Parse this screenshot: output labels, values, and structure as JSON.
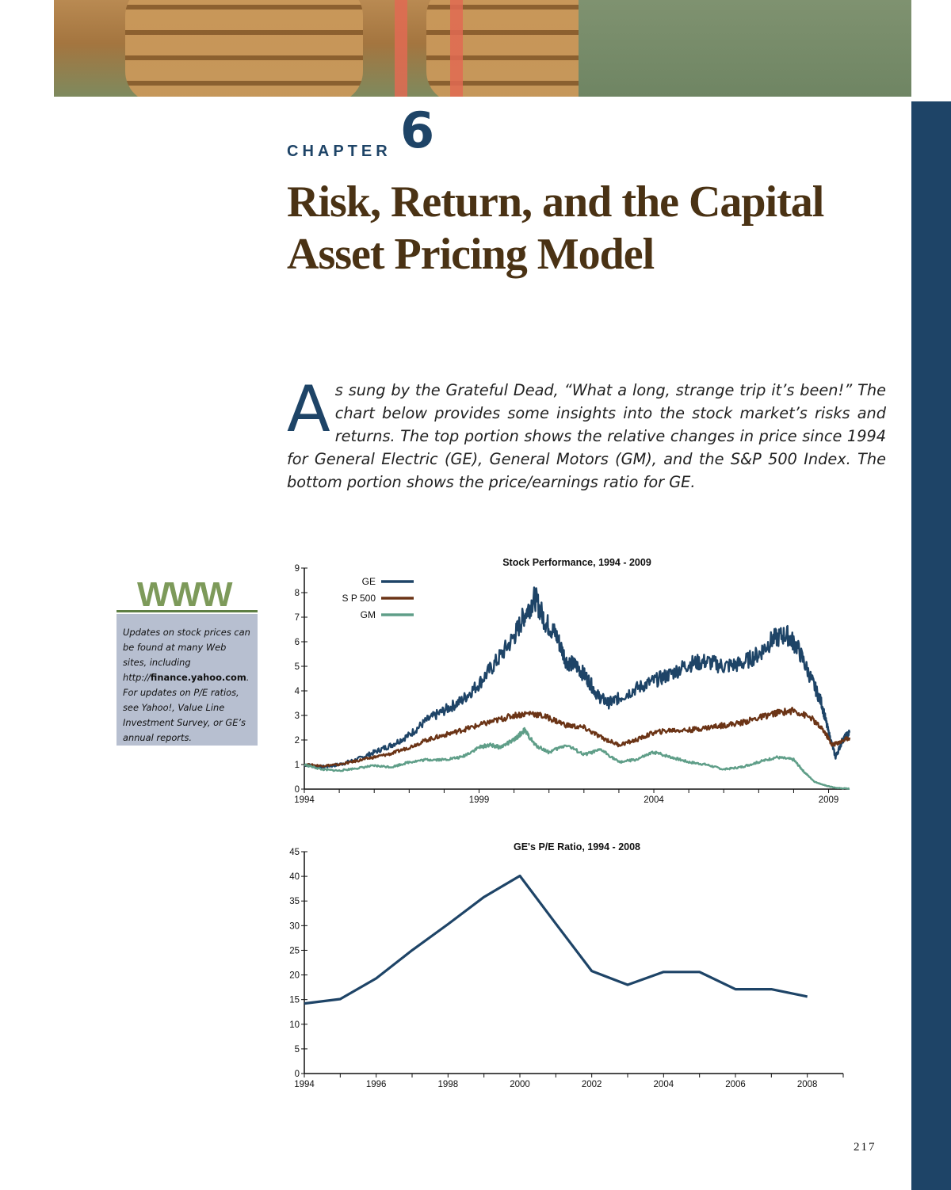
{
  "chapter": {
    "label": "CHAPTER",
    "number": "6",
    "title": "Risk, Return, and the Capital Asset Pricing Model"
  },
  "intro": {
    "drop_cap": "A",
    "text": "s sung by the Grateful Dead, “What a long, strange trip it’s been!” The chart below provides some insights into the stock market’s risks and returns. The top portion shows the relative changes in price since 1994 for General Electric (GE), General Motors (GM), and the S&P 500 Index. The bottom portion shows the price/earnings ratio for GE."
  },
  "sidebar": {
    "www_label": "WWW",
    "note_part1": "Updates on stock prices can be found at many Web sites, including http://",
    "note_bold": "finance.yahoo.com",
    "note_part2": ". For updates on P/E ratios, see Yahoo!, Value Line Investment Survey, or GE’s annual reports."
  },
  "page_number": "217",
  "colors": {
    "ge": "#1e4467",
    "sp500": "#6b3416",
    "gm": "#5f9e88",
    "title": "#4a3214",
    "accent": "#1e4467"
  },
  "chart_data": [
    {
      "type": "line",
      "title": "Stock Performance, 1994 - 2009",
      "xlabel": "",
      "ylabel": "",
      "xlim": [
        1994,
        2009.6
      ],
      "ylim": [
        0,
        9
      ],
      "x_ticks": [
        "1994",
        "1999",
        "2004",
        "2009"
      ],
      "y_ticks": [
        "0",
        "1",
        "2",
        "3",
        "4",
        "5",
        "6",
        "7",
        "8",
        "9"
      ],
      "legend_position": "top-left",
      "series": [
        {
          "name": "GE",
          "x": [
            1994,
            1994.5,
            1995,
            1995.5,
            1996,
            1996.5,
            1997,
            1997.5,
            1998,
            1998.5,
            1999,
            1999.5,
            2000,
            2000.3,
            2000.6,
            2000.9,
            2001.2,
            2001.5,
            2001.8,
            2002.1,
            2002.4,
            2002.7,
            2003,
            2003.5,
            2004,
            2004.5,
            2005,
            2005.5,
            2006,
            2006.5,
            2007,
            2007.4,
            2007.8,
            2008.1,
            2008.5,
            2008.8,
            2009.0,
            2009.2,
            2009.4,
            2009.6
          ],
          "y": [
            1.0,
            0.9,
            1.0,
            1.2,
            1.5,
            1.8,
            2.2,
            2.8,
            3.2,
            3.6,
            4.3,
            5.2,
            6.2,
            7.1,
            7.8,
            6.8,
            6.3,
            5.2,
            5.0,
            4.5,
            3.8,
            3.5,
            3.7,
            4.1,
            4.4,
            4.7,
            5.1,
            5.2,
            5.0,
            5.1,
            5.5,
            6.1,
            6.3,
            5.8,
            4.5,
            3.5,
            2.3,
            1.3,
            2.0,
            2.3
          ]
        },
        {
          "name": "S P 500",
          "x": [
            1994,
            1994.5,
            1995,
            1995.5,
            1996,
            1996.5,
            1997,
            1997.5,
            1998,
            1998.5,
            1999,
            1999.5,
            2000,
            2000.5,
            2001,
            2001.5,
            2002,
            2002.5,
            2003,
            2003.5,
            2004,
            2004.5,
            2005,
            2005.5,
            2006,
            2006.5,
            2007,
            2007.5,
            2008,
            2008.5,
            2008.9,
            2009.1,
            2009.3,
            2009.6
          ],
          "y": [
            1.0,
            0.95,
            1.0,
            1.15,
            1.3,
            1.45,
            1.7,
            2.0,
            2.2,
            2.4,
            2.6,
            2.8,
            3.0,
            3.1,
            2.9,
            2.6,
            2.5,
            2.1,
            1.8,
            2.0,
            2.3,
            2.4,
            2.4,
            2.5,
            2.6,
            2.7,
            2.9,
            3.1,
            3.2,
            2.9,
            2.3,
            1.8,
            1.9,
            2.1
          ]
        },
        {
          "name": "GM",
          "x": [
            1994,
            1994.5,
            1995,
            1995.5,
            1996,
            1996.5,
            1997,
            1997.5,
            1998,
            1998.5,
            1999,
            1999.3,
            1999.6,
            2000,
            2000.3,
            2000.6,
            2001,
            2001.5,
            2002,
            2002.5,
            2003,
            2003.5,
            2004,
            2004.5,
            2005,
            2005.5,
            2006,
            2006.5,
            2007,
            2007.5,
            2008,
            2008.3,
            2008.6,
            2008.9,
            2009.2,
            2009.6
          ],
          "y": [
            1.0,
            0.8,
            0.75,
            0.85,
            0.95,
            0.9,
            1.1,
            1.2,
            1.2,
            1.3,
            1.7,
            1.8,
            1.7,
            2.0,
            2.4,
            1.8,
            1.5,
            1.8,
            1.4,
            1.6,
            1.1,
            1.2,
            1.5,
            1.3,
            1.1,
            1.0,
            0.8,
            0.9,
            1.1,
            1.3,
            1.2,
            0.7,
            0.3,
            0.15,
            0.05,
            0.02
          ]
        }
      ]
    },
    {
      "type": "line",
      "title": "GE's P/E Ratio, 1994 - 2008",
      "xlabel": "",
      "ylabel": "",
      "xlim": [
        1994,
        2009
      ],
      "ylim": [
        0,
        45
      ],
      "x_ticks": [
        "1994",
        "1996",
        "1998",
        "2000",
        "2002",
        "2004",
        "2006",
        "2008"
      ],
      "y_ticks": [
        "0",
        "5",
        "10",
        "15",
        "20",
        "25",
        "30",
        "35",
        "40",
        "45"
      ],
      "series": [
        {
          "name": "GE P/E",
          "x": [
            1994,
            1995,
            1996,
            1997,
            1998,
            1999,
            2000,
            2001,
            2002,
            2003,
            2004,
            2005,
            2006,
            2007,
            2008
          ],
          "y": [
            14.2,
            15.1,
            19.3,
            25.0,
            30.3,
            35.8,
            40.1,
            30.4,
            20.8,
            18.0,
            20.6,
            20.6,
            17.1,
            17.1,
            15.6
          ]
        }
      ]
    }
  ]
}
